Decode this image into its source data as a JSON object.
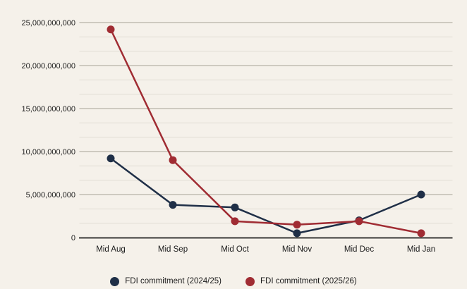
{
  "colors": {
    "background": "#f5f1ea",
    "gridline_major": "#b8b2a7",
    "gridline_minor": "#e2ddd4",
    "axis": "#1c1c1c",
    "text": "#1c1c1c",
    "series_navy": "#1f2f47",
    "series_red": "#a02c33"
  },
  "chart_data": {
    "type": "line",
    "title": "",
    "xlabel": "",
    "ylabel": "",
    "categories": [
      "Mid Aug",
      "Mid Sep",
      "Mid Oct",
      "Mid Nov",
      "Mid Dec",
      "Mid Jan"
    ],
    "series": [
      {
        "name": "FDI commitment (2024/25)",
        "color": "#1f2f47",
        "values": [
          9200000000,
          3800000000,
          3500000000,
          500000000,
          2000000000,
          5000000000
        ]
      },
      {
        "name": "FDI commitment (2025/26)",
        "color": "#a02c33",
        "values": [
          24200000000,
          9000000000,
          1900000000,
          1500000000,
          1900000000,
          500000000
        ]
      }
    ],
    "ylim": [
      0,
      26700000000
    ],
    "yticks": [
      0,
      5000000000,
      10000000000,
      15000000000,
      20000000000,
      25000000000
    ],
    "ytick_labels": [
      "0",
      "5,000,000,000",
      "10,000,000,000",
      "15,000,000,000",
      "20,000,000,000",
      "25,000,000,000"
    ],
    "minor_gridlines_per_interval": 2,
    "grid": "horizontal",
    "legend_position": "bottom"
  }
}
